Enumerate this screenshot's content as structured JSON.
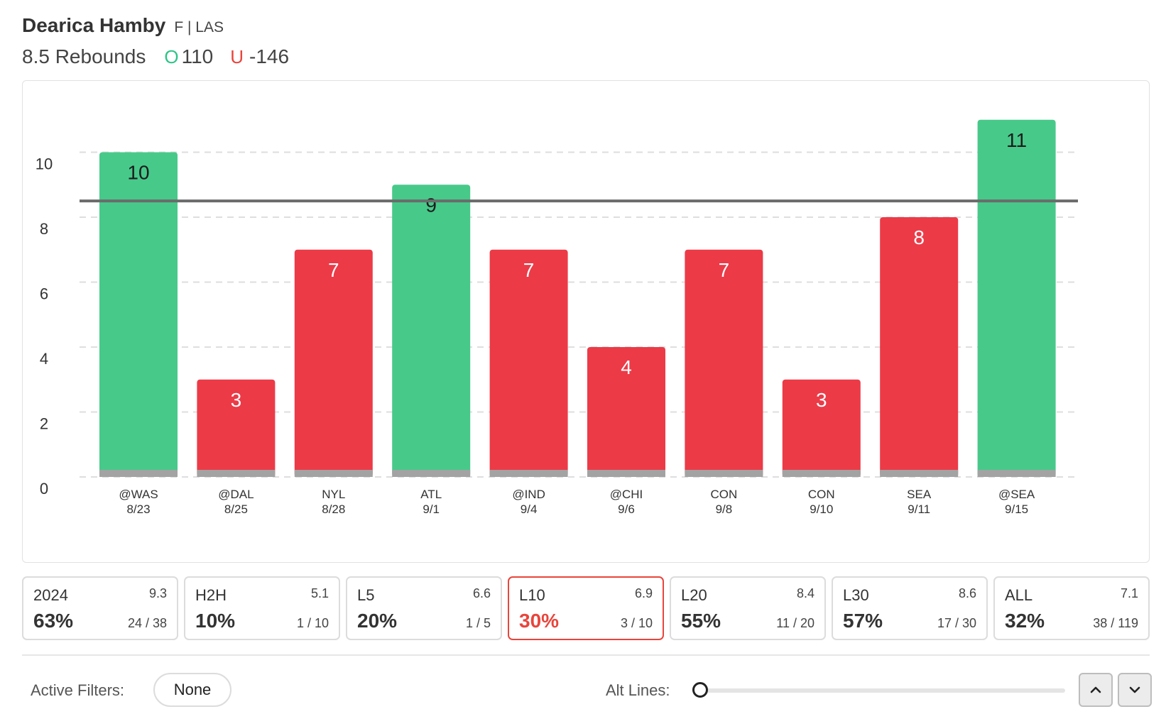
{
  "header": {
    "player_name": "Dearica Hamby",
    "player_meta": "F | LAS",
    "line_label": "8.5 Rebounds",
    "over_mark": "O",
    "over_odds": "110",
    "under_mark": "U",
    "under_odds": "-146"
  },
  "chart_data": {
    "type": "bar",
    "title": "",
    "xlabel": "",
    "ylabel": "",
    "ylim": [
      0,
      11
    ],
    "yticks": [
      0,
      2,
      4,
      6,
      8,
      10
    ],
    "grid": true,
    "threshold": 8.5,
    "categories": [
      "@WAS",
      "@DAL",
      "NYL",
      "ATL",
      "@IND",
      "@CHI",
      "CON",
      "CON",
      "SEA",
      "@SEA"
    ],
    "dates": [
      "8/23",
      "8/25",
      "8/28",
      "9/1",
      "9/4",
      "9/6",
      "9/8",
      "9/10",
      "9/11",
      "9/15"
    ],
    "values": [
      10,
      3,
      7,
      9,
      7,
      4,
      7,
      3,
      8,
      11
    ],
    "over_color": "#47c98a",
    "under_color": "#ec3a47",
    "line_color": "#6b6b6b"
  },
  "stats": [
    {
      "label": "2024",
      "avg": "9.3",
      "pct": "63%",
      "frac": "24 / 38",
      "active": false
    },
    {
      "label": "H2H",
      "avg": "5.1",
      "pct": "10%",
      "frac": "1 / 10",
      "active": false
    },
    {
      "label": "L5",
      "avg": "6.6",
      "pct": "20%",
      "frac": "1 / 5",
      "active": false
    },
    {
      "label": "L10",
      "avg": "6.9",
      "pct": "30%",
      "frac": "3 / 10",
      "active": true
    },
    {
      "label": "L20",
      "avg": "8.4",
      "pct": "55%",
      "frac": "11 / 20",
      "active": false
    },
    {
      "label": "L30",
      "avg": "8.6",
      "pct": "57%",
      "frac": "17 / 30",
      "active": false
    },
    {
      "label": "ALL",
      "avg": "7.1",
      "pct": "32%",
      "frac": "38 / 119",
      "active": false
    }
  ],
  "filters": {
    "label": "Active Filters:",
    "value": "None"
  },
  "alt_lines": {
    "label": "Alt Lines:"
  },
  "colors": {
    "accent_red": "#e8453c",
    "accent_green": "#2ec488"
  }
}
